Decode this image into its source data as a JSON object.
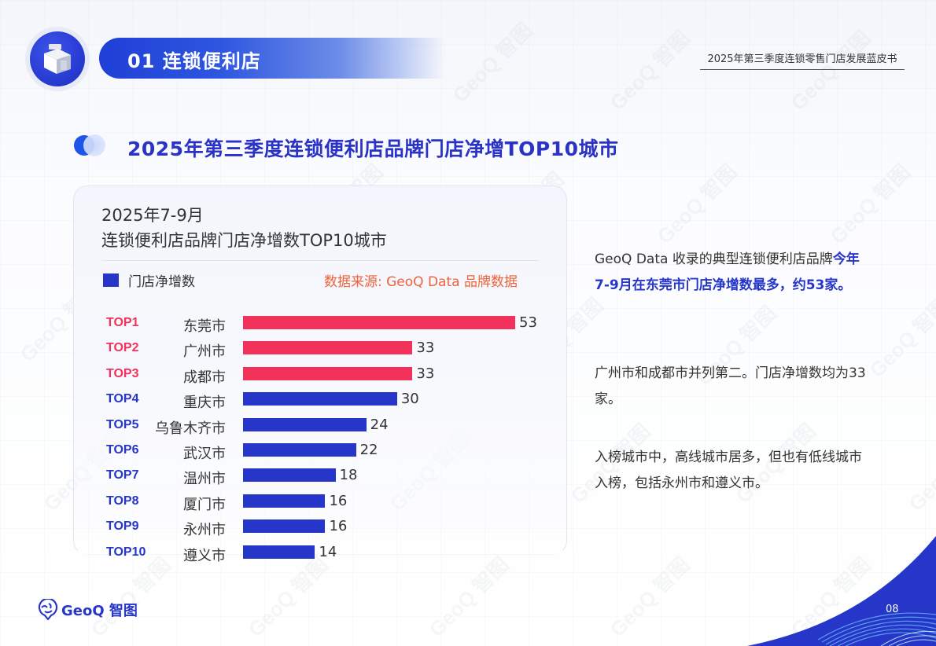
{
  "header": {
    "section_number_title": "01 连锁便利店",
    "section_icon": "store-icon",
    "document_title": "2025年第三季度连锁零售门店发展蓝皮书"
  },
  "main_title": "2025年第三季度连锁便利店品牌门店净增TOP10城市",
  "card": {
    "title_line1": "2025年7-9月",
    "title_line2": "连锁便利店品牌门店净增数TOP10城市",
    "legend_label": "门店净增数",
    "source": "数据来源: GeoQ Data 品牌数据"
  },
  "chart_data": {
    "type": "bar",
    "orientation": "horizontal",
    "title": "2025年7-9月 连锁便利店品牌门店净增数TOP10城市",
    "xlabel": "",
    "ylabel": "",
    "grid": false,
    "legend": [
      "门店净增数"
    ],
    "legend_position": "top-left",
    "ranks": [
      "TOP1",
      "TOP2",
      "TOP3",
      "TOP4",
      "TOP5",
      "TOP6",
      "TOP7",
      "TOP8",
      "TOP9",
      "TOP10"
    ],
    "categories": [
      "东莞市",
      "广州市",
      "成都市",
      "重庆市",
      "乌鲁木齐市",
      "武汉市",
      "温州市",
      "厦门市",
      "永州市",
      "遵义市"
    ],
    "values": [
      53,
      33,
      33,
      30,
      24,
      22,
      18,
      16,
      16,
      14
    ],
    "series": [
      {
        "name": "门店净增数",
        "values": [
          53,
          33,
          33,
          30,
          24,
          22,
          18,
          16,
          16,
          14
        ]
      }
    ],
    "bar_colors": [
      "#f2325a",
      "#f2325a",
      "#f2325a",
      "#2536c9",
      "#2536c9",
      "#2536c9",
      "#2536c9",
      "#2536c9",
      "#2536c9",
      "#2536c9"
    ],
    "rank_colors": [
      "#f2325a",
      "#f2325a",
      "#f2325a",
      "#2536c9",
      "#2536c9",
      "#2536c9",
      "#2536c9",
      "#2536c9",
      "#2536c9",
      "#2536c9"
    ]
  },
  "analysis": {
    "p1_prefix": "GeoQ Data 收录的典型连锁便利店品牌",
    "p1_highlight": "今年7-9月在东莞市门店净增数最多，约53家。",
    "p2": "广州市和成都市并列第二。门店净增数均为33家。",
    "p3": "入榜城市中，高线城市居多，但也有低线城市入榜，包括永州市和遵义市。"
  },
  "footer": {
    "logo_text": "GeoQ 智图",
    "page_number": "08"
  },
  "colors": {
    "brand_blue": "#2536c9",
    "highlight_red": "#f2325a",
    "source_orange": "#f0623a",
    "title_blue": "#2a33c6"
  },
  "watermark_text": "GeoQ 智图"
}
